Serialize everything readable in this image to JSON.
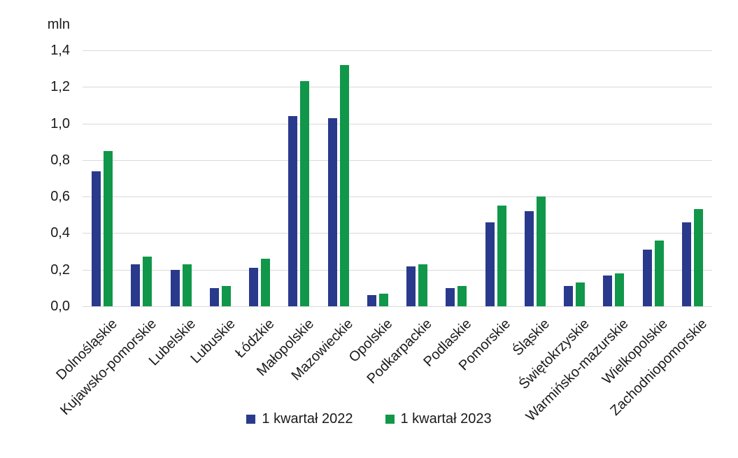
{
  "chart": {
    "colors": {
      "series_2022": "#293a8c",
      "series_2023": "#10974a",
      "gridline": "#d9d9d9",
      "text": "#1a1a1a",
      "background": "#ffffff"
    }
  },
  "chart_data": {
    "type": "bar",
    "title": "",
    "xlabel": "",
    "ylabel": "mln",
    "ylim": [
      0,
      1.4
    ],
    "ytick_step": 0.2,
    "yticks_labels": [
      "0,0",
      "0,2",
      "0,4",
      "0,6",
      "0,8",
      "1,0",
      "1,2",
      "1,4"
    ],
    "grid": true,
    "legend_position": "bottom",
    "categories": [
      "Dolnośląskie",
      "Kujawsko-pomorskie",
      "Lubelskie",
      "Lubuskie",
      "Łódzkie",
      "Małopolskie",
      "Mazowieckie",
      "Opolskie",
      "Podkarpackie",
      "Podlaskie",
      "Pomorskie",
      "Śląskie",
      "Świętokrzyskie",
      "Warmińsko-mazurskie",
      "Wielkopolskie",
      "Zachodniopomorskie"
    ],
    "series": [
      {
        "name": "1 kwartał 2022",
        "color": "#293a8c",
        "values": [
          0.74,
          0.23,
          0.2,
          0.1,
          0.21,
          1.04,
          1.03,
          0.06,
          0.22,
          0.1,
          0.46,
          0.52,
          0.11,
          0.17,
          0.31,
          0.46
        ]
      },
      {
        "name": "1 kwartał 2023",
        "color": "#10974a",
        "values": [
          0.85,
          0.27,
          0.23,
          0.11,
          0.26,
          1.23,
          1.32,
          0.07,
          0.23,
          0.11,
          0.55,
          0.6,
          0.13,
          0.18,
          0.36,
          0.53
        ]
      }
    ]
  }
}
